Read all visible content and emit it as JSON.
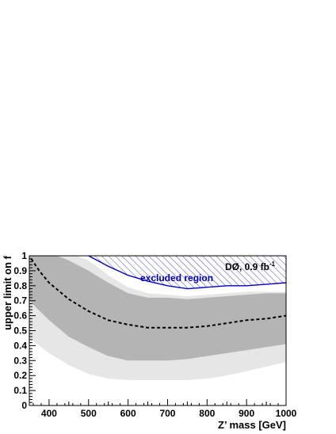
{
  "chart_data": {
    "type": "line",
    "xlabel": "Z’ mass [GeV]",
    "ylabel": "upper limit on f",
    "xlim": [
      350,
      1000
    ],
    "ylim": [
      0,
      1
    ],
    "x_ticks": [
      {
        "value": 400,
        "label": "400"
      },
      {
        "value": 500,
        "label": "500"
      },
      {
        "value": 600,
        "label": "600"
      },
      {
        "value": 700,
        "label": "700"
      },
      {
        "value": 800,
        "label": "800"
      },
      {
        "value": 900,
        "label": "900"
      },
      {
        "value": 1000,
        "label": "1000"
      }
    ],
    "y_ticks": [
      {
        "value": 0,
        "label": "0"
      },
      {
        "value": 0.1,
        "label": "0.1"
      },
      {
        "value": 0.2,
        "label": "0.2"
      },
      {
        "value": 0.3,
        "label": "0.3"
      },
      {
        "value": 0.4,
        "label": "0.4"
      },
      {
        "value": 0.5,
        "label": "0.5"
      },
      {
        "value": 0.6,
        "label": "0.6"
      },
      {
        "value": 0.7,
        "label": "0.7"
      },
      {
        "value": 0.8,
        "label": "0.8"
      },
      {
        "value": 0.9,
        "label": "0.9"
      },
      {
        "value": 1,
        "label": "1"
      }
    ],
    "band_2sigma": {
      "lower": [
        [
          350,
          0.45
        ],
        [
          400,
          0.35
        ],
        [
          450,
          0.27
        ],
        [
          500,
          0.21
        ],
        [
          550,
          0.18
        ],
        [
          600,
          0.17
        ],
        [
          650,
          0.17
        ],
        [
          700,
          0.17
        ],
        [
          750,
          0.17
        ],
        [
          800,
          0.18
        ],
        [
          850,
          0.2
        ],
        [
          900,
          0.23
        ],
        [
          950,
          0.26
        ],
        [
          1000,
          0.29
        ]
      ],
      "upper": [
        [
          350,
          1.0
        ],
        [
          470,
          1.0
        ],
        [
          500,
          0.97
        ],
        [
          550,
          0.87
        ],
        [
          600,
          0.79
        ],
        [
          650,
          0.75
        ],
        [
          700,
          0.74
        ],
        [
          750,
          0.73
        ],
        [
          800,
          0.74
        ],
        [
          850,
          0.75
        ],
        [
          900,
          0.76
        ],
        [
          950,
          0.76
        ],
        [
          1000,
          0.76
        ]
      ]
    },
    "band_1sigma": {
      "lower": [
        [
          350,
          0.7
        ],
        [
          400,
          0.57
        ],
        [
          450,
          0.46
        ],
        [
          500,
          0.39
        ],
        [
          550,
          0.33
        ],
        [
          600,
          0.3
        ],
        [
          650,
          0.3
        ],
        [
          700,
          0.3
        ],
        [
          750,
          0.31
        ],
        [
          800,
          0.33
        ],
        [
          850,
          0.35
        ],
        [
          900,
          0.37
        ],
        [
          950,
          0.39
        ],
        [
          1000,
          0.41
        ]
      ],
      "upper": [
        [
          350,
          1.0
        ],
        [
          400,
          1.0
        ],
        [
          420,
          1.0
        ],
        [
          450,
          0.97
        ],
        [
          500,
          0.9
        ],
        [
          550,
          0.82
        ],
        [
          600,
          0.75
        ],
        [
          650,
          0.72
        ],
        [
          700,
          0.72
        ],
        [
          750,
          0.71
        ],
        [
          800,
          0.72
        ],
        [
          850,
          0.73
        ],
        [
          900,
          0.74
        ],
        [
          950,
          0.75
        ],
        [
          1000,
          0.75
        ]
      ]
    },
    "expected_limit": {
      "line_style": "dashed",
      "color": "#000000",
      "points": [
        [
          355,
          0.98
        ],
        [
          375,
          0.9
        ],
        [
          400,
          0.82
        ],
        [
          450,
          0.71
        ],
        [
          500,
          0.63
        ],
        [
          550,
          0.57
        ],
        [
          600,
          0.54
        ],
        [
          650,
          0.52
        ],
        [
          700,
          0.52
        ],
        [
          750,
          0.52
        ],
        [
          800,
          0.53
        ],
        [
          850,
          0.55
        ],
        [
          900,
          0.57
        ],
        [
          950,
          0.58
        ],
        [
          1000,
          0.6
        ]
      ]
    },
    "observed_limit": {
      "color": "#0000cc",
      "points": [
        [
          500,
          1.0
        ],
        [
          550,
          0.93
        ],
        [
          600,
          0.87
        ],
        [
          650,
          0.83
        ],
        [
          700,
          0.8
        ],
        [
          750,
          0.78
        ],
        [
          800,
          0.79
        ],
        [
          850,
          0.8
        ],
        [
          900,
          0.8
        ],
        [
          950,
          0.81
        ],
        [
          1000,
          0.82
        ]
      ]
    },
    "excluded_region_fill": "hatched",
    "annotation_excluded": "excluded region",
    "annotation_experiment": "DØ, 0.9 fb",
    "annotation_experiment_sup": "-1",
    "colors": {
      "band_2sigma": "#e6e6e6",
      "band_1sigma": "#b4b4b4",
      "observed": "#0000cc",
      "hatch": "#3838b8",
      "annotation_excluded": "#0000cc"
    }
  }
}
